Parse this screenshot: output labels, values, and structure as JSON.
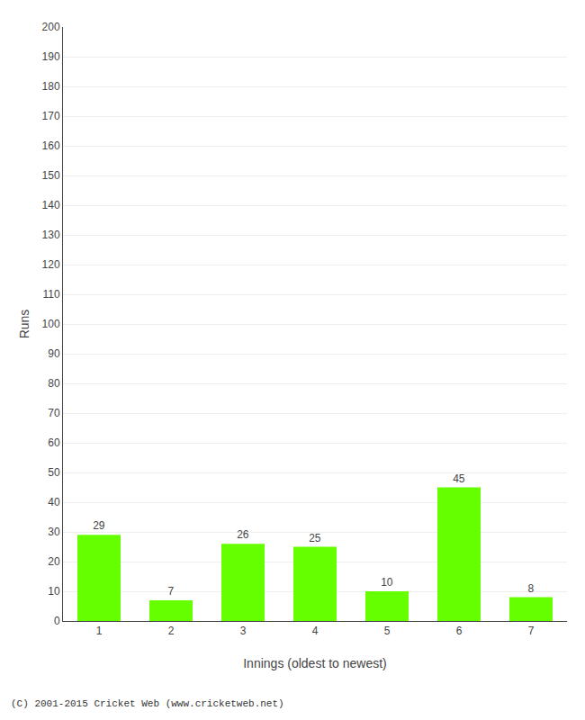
{
  "chart_data": {
    "type": "bar",
    "categories": [
      "1",
      "2",
      "3",
      "4",
      "5",
      "6",
      "7"
    ],
    "values": [
      29,
      7,
      26,
      25,
      10,
      45,
      8
    ],
    "color": "#66ff00",
    "xlabel": "Innings (oldest to newest)",
    "ylabel": "Runs",
    "ylim": [
      0,
      200
    ],
    "yticks": [
      0,
      10,
      20,
      30,
      40,
      50,
      60,
      70,
      80,
      90,
      100,
      110,
      120,
      130,
      140,
      150,
      160,
      170,
      180,
      190,
      200
    ],
    "grid": true,
    "data_labels": true,
    "annotations": [
      "(C) 2001-2015 Cricket Web (www.cricketweb.net)"
    ]
  }
}
